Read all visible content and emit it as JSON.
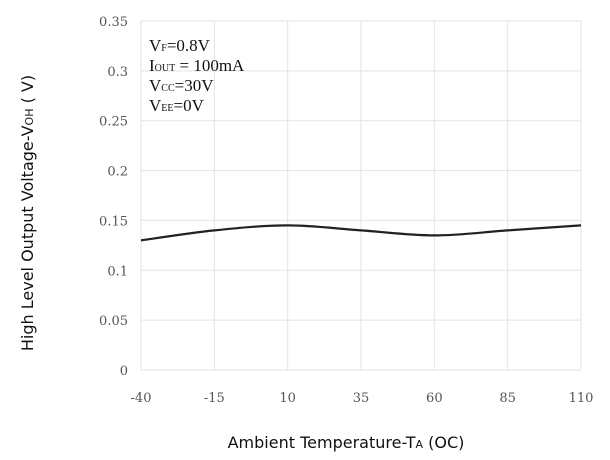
{
  "chart_data": {
    "type": "line",
    "xlabel": {
      "main": "Ambient Temperature-T",
      "sub": "A",
      "tail": " (OC)"
    },
    "ylabel": {
      "main": "High Level Output Voltage-V",
      "sub": "OH",
      "tail": "  ( V)"
    },
    "x_ticks": [
      "-40",
      "-15",
      "10",
      "35",
      "60",
      "85",
      "110"
    ],
    "y_ticks": [
      "0",
      "0.05",
      "0.1",
      "0.15",
      "0.2",
      "0.25",
      "0.3",
      "0.35"
    ],
    "xlim": [
      -40,
      110
    ],
    "ylim": [
      0,
      0.35
    ],
    "grid": true,
    "conditions": [
      {
        "main": "V",
        "sub": "F",
        "tail": "=0.8V"
      },
      {
        "main": "I",
        "sub": "OUT",
        "tail": " = 100mA"
      },
      {
        "main": "V",
        "sub": "CC",
        "tail": "=30V"
      },
      {
        "main": "V",
        "sub": "EE",
        "tail": "=0V"
      }
    ],
    "series": [
      {
        "x": [
          -40,
          -15,
          10,
          35,
          60,
          85,
          110
        ],
        "y": [
          0.13,
          0.14,
          0.145,
          0.14,
          0.135,
          0.14,
          0.145
        ]
      }
    ],
    "line_color": "#222222",
    "grid_color": "#e3e3e3"
  }
}
